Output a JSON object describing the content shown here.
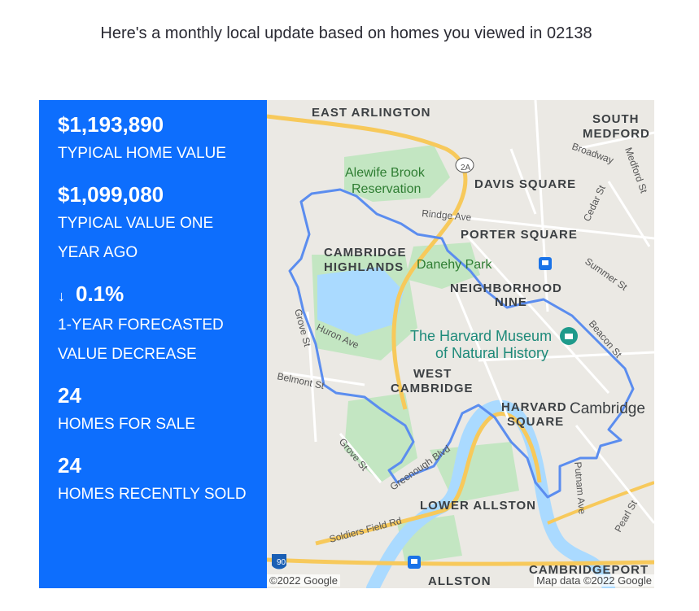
{
  "headline": "Here's a monthly local update based on homes you viewed in 02138",
  "stats": [
    {
      "value": "$1,193,890",
      "label": "TYPICAL HOME VALUE"
    },
    {
      "value": "$1,099,080",
      "label": "TYPICAL VALUE ONE YEAR AGO"
    },
    {
      "value": "0.1%",
      "label": "1-YEAR FORECASTED VALUE DECREASE",
      "arrow": "↓"
    },
    {
      "value": "24",
      "label": "HOMES FOR SALE"
    },
    {
      "value": "24",
      "label": "HOMES RECENTLY SOLD"
    }
  ],
  "map": {
    "labels": {
      "east_arlington": "EAST ARLINGTON",
      "south_medford_1": "SOUTH",
      "south_medford_2": "MEDFORD",
      "broadway": "Broadway",
      "medford_st": "Medford St",
      "route_2a": "2A",
      "alewife_1": "Alewife Brook",
      "alewife_2": "Reservation",
      "davis_square": "DAVIS SQUARE",
      "cedar_st": "Cedar St",
      "rindge_ave": "Rindge Ave",
      "porter_square": "PORTER SQUARE",
      "summer_st": "Summer St",
      "cambridge_highlands_1": "CAMBRIDGE",
      "cambridge_highlands_2": "HIGHLANDS",
      "danehy_park": "Danehy Park",
      "neighborhood_nine_1": "NEIGHBORHOOD",
      "neighborhood_nine_2": "NINE",
      "grove_st_north": "Grove St",
      "huron_ave": "Huron Ave",
      "museum_1": "The Harvard Museum",
      "museum_2": "of Natural History",
      "beacon_st": "Beacon St",
      "belmont_st": "Belmont St",
      "west_cambridge_1": "WEST",
      "west_cambridge_2": "CAMBRIDGE",
      "harvard_square_1": "HARVARD",
      "harvard_square_2": "SQUARE",
      "cambridge": "Cambridge",
      "grove_st_south": "Grove St",
      "greenough_blvd": "Greenough Blvd",
      "putnam_ave": "Putnam Ave",
      "soldiers_field_rd": "Soldiers Field Rd",
      "lower_allston": "LOWER ALLSTON",
      "pearl_st": "Pearl St",
      "route_90": "90",
      "allston": "ALLSTON",
      "cambridgeport": "CAMBRIDGEPORT"
    },
    "copyright": "©2022 Google",
    "map_data": "Map data ©2022 Google",
    "colors": {
      "boundary": "#5b8def",
      "water": "#aadaff",
      "park": "#c3e6c2",
      "highway": "#f7c95b"
    }
  }
}
